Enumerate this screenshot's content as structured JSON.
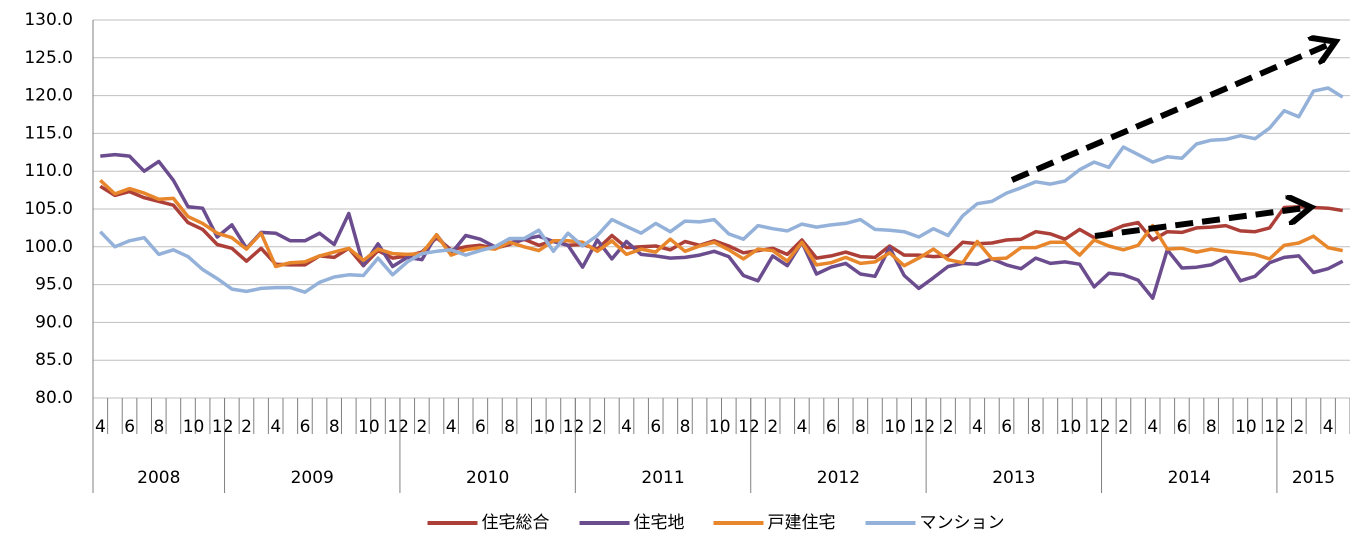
{
  "chart_data": {
    "type": "line",
    "categories": [
      "4",
      null,
      "6",
      null,
      "8",
      null,
      "10",
      null,
      "12",
      null,
      "2",
      null,
      "4",
      null,
      "6",
      null,
      "8",
      null,
      "10",
      null,
      "12",
      null,
      "2",
      null,
      "4",
      null,
      "6",
      null,
      "8",
      null,
      "10",
      null,
      "12",
      null,
      "2",
      null,
      "4",
      null,
      "6",
      null,
      "8",
      null,
      "10",
      null,
      "12",
      null,
      "2",
      null,
      "4",
      null,
      "6",
      null,
      "8",
      null,
      "10",
      null,
      "12",
      null,
      "2",
      null,
      "4",
      null,
      "6",
      null,
      "8",
      null,
      "10",
      null,
      "12",
      null,
      "2",
      null,
      "4",
      null,
      "6",
      null,
      "8",
      null,
      "10",
      null,
      "12",
      null,
      "2",
      null,
      "4",
      null
    ],
    "category_groups": [
      "2008",
      "2008",
      "2008",
      "2008",
      "2008",
      "2008",
      "2008",
      "2008",
      "2008",
      "2009",
      "2009",
      "2009",
      "2009",
      "2009",
      "2009",
      "2009",
      "2009",
      "2009",
      "2009",
      "2009",
      "2009",
      "2010",
      "2010",
      "2010",
      "2010",
      "2010",
      "2010",
      "2010",
      "2010",
      "2010",
      "2010",
      "2010",
      "2010",
      "2011",
      "2011",
      "2011",
      "2011",
      "2011",
      "2011",
      "2011",
      "2011",
      "2011",
      "2011",
      "2011",
      "2011",
      "2012",
      "2012",
      "2012",
      "2012",
      "2012",
      "2012",
      "2012",
      "2012",
      "2012",
      "2012",
      "2012",
      "2012",
      "2013",
      "2013",
      "2013",
      "2013",
      "2013",
      "2013",
      "2013",
      "2013",
      "2013",
      "2013",
      "2013",
      "2013",
      "2014",
      "2014",
      "2014",
      "2014",
      "2014",
      "2014",
      "2014",
      "2014",
      "2014",
      "2014",
      "2014",
      "2014",
      "2015",
      "2015",
      "2015",
      "2015",
      "2015"
    ],
    "series": [
      {
        "name": "住宅総合",
        "color": "#ac4039",
        "values": [
          108,
          106.8,
          107.3,
          106.5,
          106,
          105.5,
          103.2,
          102.3,
          100.3,
          99.8,
          98.1,
          99.8,
          97.7,
          97.6,
          97.6,
          98.8,
          98.6,
          99.8,
          97.5,
          99.5,
          98.5,
          98.8,
          99.3,
          101.2,
          99.6,
          100,
          100.2,
          99.8,
          100.3,
          101,
          100.2,
          100.8,
          100.2,
          100.3,
          99.7,
          101.5,
          99.9,
          100,
          100.1,
          99.6,
          100.7,
          100.2,
          100.8,
          100.1,
          99.2,
          99.5,
          99.8,
          99,
          100.9,
          98.5,
          98.8,
          99.3,
          98.7,
          98.6,
          100.1,
          98.9,
          98.9,
          98.7,
          98.8,
          100.6,
          100.4,
          100.5,
          100.9,
          101,
          102,
          101.7,
          101,
          102.3,
          101.2,
          102,
          102.8,
          103.2,
          100.9,
          102,
          101.9,
          102.5,
          102.6,
          102.8,
          102.1,
          102,
          102.5,
          105.2,
          105.3,
          105.2,
          105.1,
          104.8
        ]
      },
      {
        "name": "住宅地",
        "color": "#6b4c8e",
        "values": [
          112,
          112.2,
          112,
          110,
          111.3,
          108.8,
          105.3,
          105.1,
          101.3,
          102.9,
          99.8,
          101.9,
          101.8,
          100.8,
          100.8,
          101.8,
          100.3,
          104.4,
          97.5,
          100.4,
          97.4,
          98.6,
          98.3,
          101.6,
          99.1,
          101.5,
          101,
          100,
          100.5,
          101,
          101.4,
          100.7,
          100.2,
          97.3,
          100.9,
          98.4,
          100.7,
          99,
          98.8,
          98.5,
          98.6,
          98.9,
          99.4,
          98.7,
          96.2,
          95.5,
          98.8,
          97.5,
          100.6,
          96.4,
          97.3,
          97.8,
          96.4,
          96.1,
          99.9,
          96.2,
          94.5,
          95.9,
          97.4,
          97.8,
          97.7,
          98.4,
          97.6,
          97.1,
          98.5,
          97.8,
          98,
          97.7,
          94.7,
          96.5,
          96.3,
          95.6,
          93.2,
          99.6,
          97.2,
          97.3,
          97.6,
          98.6,
          95.5,
          96.1,
          97.9,
          98.6,
          98.8,
          96.6,
          97.1,
          98.1
        ]
      },
      {
        "name": "戸建住宅",
        "color": "#e8862c",
        "values": [
          108.8,
          107,
          107.7,
          107.1,
          106.3,
          106.4,
          104,
          103.1,
          101.8,
          101.2,
          99.7,
          101.8,
          97.4,
          97.9,
          98,
          98.8,
          99.3,
          99.8,
          98.2,
          99.7,
          99.1,
          99,
          99.1,
          101.6,
          98.9,
          99.6,
          99.9,
          99.7,
          100.6,
          100,
          99.5,
          100.8,
          100.8,
          100.6,
          99.4,
          100.8,
          99,
          99.7,
          99.3,
          101,
          99.4,
          100.1,
          100.6,
          99.6,
          98.4,
          99.7,
          99.5,
          98.1,
          100.6,
          97.6,
          97.9,
          98.6,
          97.8,
          98,
          99.2,
          97.5,
          98.5,
          99.7,
          98.3,
          97.9,
          100.7,
          98.4,
          98.5,
          99.9,
          99.9,
          100.6,
          100.6,
          98.9,
          100.9,
          100.1,
          99.6,
          100.2,
          102.8,
          99.7,
          99.8,
          99.3,
          99.7,
          99.4,
          99.2,
          99,
          98.4,
          100.2,
          100.5,
          101.4,
          99.9,
          99.5
        ]
      },
      {
        "name": "マンション",
        "color": "#94b1d9",
        "values": [
          102,
          100,
          100.8,
          101.2,
          99,
          99.6,
          98.7,
          97,
          95.8,
          94.4,
          94.1,
          94.5,
          94.6,
          94.6,
          94,
          95.3,
          96,
          96.3,
          96.2,
          98.5,
          96.3,
          98,
          99.1,
          99.4,
          99.6,
          98.9,
          99.5,
          100,
          101.1,
          101.1,
          102.2,
          99.4,
          101.8,
          100.1,
          101.5,
          103.6,
          102.7,
          101.8,
          103.1,
          102,
          103.4,
          103.3,
          103.6,
          101.7,
          101,
          102.8,
          102.4,
          102.1,
          103,
          102.6,
          102.9,
          103.1,
          103.6,
          102.3,
          102.2,
          102,
          101.3,
          102.4,
          101.5,
          104.1,
          105.7,
          106,
          107.1,
          107.8,
          108.6,
          108.3,
          108.7,
          110.2,
          111.2,
          110.5,
          113.2,
          112.2,
          111.2,
          111.9,
          111.7,
          113.6,
          114.1,
          114.2,
          114.7,
          114.3,
          115.7,
          118,
          117.2,
          120.6,
          121,
          119.8
        ]
      }
    ],
    "ylim": [
      80,
      130
    ],
    "yticks": [
      {
        "value": 80,
        "label": "80.0"
      },
      {
        "value": 85,
        "label": "85.0"
      },
      {
        "value": 90,
        "label": "90.0"
      },
      {
        "value": 95,
        "label": "95.0"
      },
      {
        "value": 100,
        "label": "100.0"
      },
      {
        "value": 105,
        "label": "105.0"
      },
      {
        "value": 110,
        "label": "110.0"
      },
      {
        "value": 115,
        "label": "115.0"
      },
      {
        "value": 120,
        "label": "120.0"
      },
      {
        "value": 125,
        "label": "125.0"
      },
      {
        "value": 130,
        "label": "130.0"
      }
    ],
    "grid": true,
    "legend": "bottom"
  }
}
